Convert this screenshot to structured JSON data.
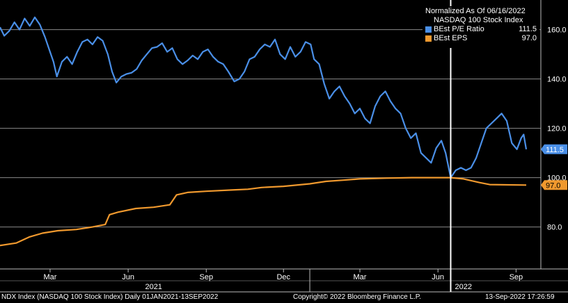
{
  "legend": {
    "title": "Normalized As Of 06/16/2022",
    "subtitle": "NASDAQ 100 Stock Index",
    "items": [
      {
        "label": "BEst P/E Ratio",
        "value": "111.5",
        "color": "#4a8fe7"
      },
      {
        "label": "BEst EPS",
        "value": "97.0",
        "color": "#f0992e"
      }
    ]
  },
  "footer": {
    "left": "NDX Index (NASDAQ 100 Stock Index)  Daily 01JAN2021-13SEP2022",
    "center": "Copyright© 2022 Bloomberg Finance L.P.",
    "right": "13-Sep-2022 17:26:59"
  },
  "chart_data": {
    "type": "line",
    "x_start": "2021-01-01",
    "x_end": "2022-09-13",
    "marker_date": "2022-06-16",
    "ylim": [
      63,
      172
    ],
    "y_ticks": [
      80,
      100,
      120,
      140,
      160
    ],
    "y_tick_labels": [
      "80.0",
      "100.0",
      "120.0",
      "140.0",
      "160.0"
    ],
    "x_ticks": [
      {
        "date": "2021-03-01",
        "label": "Mar"
      },
      {
        "date": "2021-06-01",
        "label": "Jun"
      },
      {
        "date": "2021-09-01",
        "label": "Sep"
      },
      {
        "date": "2021-12-01",
        "label": "Dec"
      },
      {
        "date": "2022-03-01",
        "label": "Mar"
      },
      {
        "date": "2022-06-01",
        "label": "Jun"
      },
      {
        "date": "2022-09-01",
        "label": "Sep"
      }
    ],
    "year_labels": [
      {
        "date": "2021-07-01",
        "label": "2021"
      },
      {
        "date": "2022-07-01",
        "label": "2022"
      }
    ],
    "year_divider": "2022-01-01",
    "grid": true,
    "series": [
      {
        "name": "BEst P/E Ratio",
        "color": "#4a8fe7",
        "last_label": "111.5",
        "points": [
          [
            "2021-01-01",
            161.0
          ],
          [
            "2021-01-06",
            157.5
          ],
          [
            "2021-01-12",
            159.5
          ],
          [
            "2021-01-18",
            163.0
          ],
          [
            "2021-01-24",
            160.0
          ],
          [
            "2021-01-30",
            164.5
          ],
          [
            "2021-02-05",
            161.5
          ],
          [
            "2021-02-11",
            165.0
          ],
          [
            "2021-02-17",
            162.0
          ],
          [
            "2021-02-23",
            157.0
          ],
          [
            "2021-03-01",
            151.0
          ],
          [
            "2021-03-05",
            147.0
          ],
          [
            "2021-03-09",
            141.0
          ],
          [
            "2021-03-15",
            147.0
          ],
          [
            "2021-03-21",
            149.0
          ],
          [
            "2021-03-27",
            146.0
          ],
          [
            "2021-04-02",
            151.0
          ],
          [
            "2021-04-08",
            155.0
          ],
          [
            "2021-04-14",
            156.0
          ],
          [
            "2021-04-20",
            154.0
          ],
          [
            "2021-04-26",
            157.0
          ],
          [
            "2021-05-02",
            155.5
          ],
          [
            "2021-05-08",
            150.0
          ],
          [
            "2021-05-13",
            143.0
          ],
          [
            "2021-05-18",
            138.5
          ],
          [
            "2021-05-24",
            141.0
          ],
          [
            "2021-05-30",
            142.0
          ],
          [
            "2021-06-05",
            142.5
          ],
          [
            "2021-06-11",
            144.0
          ],
          [
            "2021-06-17",
            147.5
          ],
          [
            "2021-06-23",
            150.0
          ],
          [
            "2021-06-29",
            152.5
          ],
          [
            "2021-07-05",
            153.0
          ],
          [
            "2021-07-11",
            154.5
          ],
          [
            "2021-07-17",
            151.0
          ],
          [
            "2021-07-23",
            152.5
          ],
          [
            "2021-07-29",
            148.0
          ],
          [
            "2021-08-04",
            146.0
          ],
          [
            "2021-08-10",
            147.5
          ],
          [
            "2021-08-16",
            149.5
          ],
          [
            "2021-08-22",
            148.0
          ],
          [
            "2021-08-28",
            151.0
          ],
          [
            "2021-09-03",
            152.0
          ],
          [
            "2021-09-09",
            149.0
          ],
          [
            "2021-09-15",
            147.0
          ],
          [
            "2021-09-21",
            146.0
          ],
          [
            "2021-09-27",
            143.0
          ],
          [
            "2021-10-04",
            139.0
          ],
          [
            "2021-10-10",
            140.0
          ],
          [
            "2021-10-16",
            143.0
          ],
          [
            "2021-10-22",
            148.0
          ],
          [
            "2021-10-28",
            149.0
          ],
          [
            "2021-11-03",
            152.0
          ],
          [
            "2021-11-09",
            154.0
          ],
          [
            "2021-11-15",
            153.0
          ],
          [
            "2021-11-21",
            156.0
          ],
          [
            "2021-11-27",
            150.0
          ],
          [
            "2021-12-03",
            148.0
          ],
          [
            "2021-12-09",
            153.0
          ],
          [
            "2021-12-15",
            149.0
          ],
          [
            "2021-12-21",
            151.0
          ],
          [
            "2021-12-27",
            155.0
          ],
          [
            "2022-01-02",
            154.0
          ],
          [
            "2022-01-06",
            148.0
          ],
          [
            "2022-01-12",
            146.0
          ],
          [
            "2022-01-18",
            138.0
          ],
          [
            "2022-01-24",
            132.0
          ],
          [
            "2022-01-30",
            135.0
          ],
          [
            "2022-02-05",
            137.0
          ],
          [
            "2022-02-11",
            133.0
          ],
          [
            "2022-02-17",
            130.0
          ],
          [
            "2022-02-23",
            126.0
          ],
          [
            "2022-03-01",
            128.0
          ],
          [
            "2022-03-07",
            124.0
          ],
          [
            "2022-03-13",
            122.0
          ],
          [
            "2022-03-19",
            129.0
          ],
          [
            "2022-03-25",
            133.0
          ],
          [
            "2022-03-31",
            135.0
          ],
          [
            "2022-04-06",
            131.0
          ],
          [
            "2022-04-12",
            128.0
          ],
          [
            "2022-04-18",
            126.0
          ],
          [
            "2022-04-24",
            120.0
          ],
          [
            "2022-04-30",
            116.0
          ],
          [
            "2022-05-06",
            118.0
          ],
          [
            "2022-05-12",
            110.0
          ],
          [
            "2022-05-18",
            108.0
          ],
          [
            "2022-05-24",
            106.0
          ],
          [
            "2022-05-30",
            112.0
          ],
          [
            "2022-06-05",
            115.0
          ],
          [
            "2022-06-10",
            110.0
          ],
          [
            "2022-06-16",
            100.0
          ],
          [
            "2022-06-22",
            103.0
          ],
          [
            "2022-06-28",
            104.0
          ],
          [
            "2022-07-04",
            103.0
          ],
          [
            "2022-07-10",
            104.0
          ],
          [
            "2022-07-16",
            108.0
          ],
          [
            "2022-07-22",
            114.0
          ],
          [
            "2022-07-28",
            120.0
          ],
          [
            "2022-08-03",
            122.0
          ],
          [
            "2022-08-09",
            124.0
          ],
          [
            "2022-08-15",
            126.0
          ],
          [
            "2022-08-21",
            123.0
          ],
          [
            "2022-08-27",
            114.0
          ],
          [
            "2022-09-02",
            111.5
          ],
          [
            "2022-09-07",
            116.0
          ],
          [
            "2022-09-10",
            117.5
          ],
          [
            "2022-09-13",
            111.5
          ]
        ]
      },
      {
        "name": "BEst EPS",
        "color": "#f0992e",
        "last_label": "97.0",
        "points": [
          [
            "2021-01-01",
            72.5
          ],
          [
            "2021-01-20",
            73.5
          ],
          [
            "2021-02-05",
            76.0
          ],
          [
            "2021-02-20",
            77.5
          ],
          [
            "2021-03-10",
            78.5
          ],
          [
            "2021-04-01",
            79.0
          ],
          [
            "2021-04-20",
            80.0
          ],
          [
            "2021-05-05",
            81.0
          ],
          [
            "2021-05-10",
            85.0
          ],
          [
            "2021-05-20",
            86.0
          ],
          [
            "2021-06-10",
            87.5
          ],
          [
            "2021-07-01",
            88.0
          ],
          [
            "2021-07-20",
            89.0
          ],
          [
            "2021-07-28",
            93.0
          ],
          [
            "2021-08-10",
            94.0
          ],
          [
            "2021-09-01",
            94.5
          ],
          [
            "2021-10-01",
            95.0
          ],
          [
            "2021-10-20",
            95.3
          ],
          [
            "2021-11-05",
            96.0
          ],
          [
            "2021-12-01",
            96.5
          ],
          [
            "2022-01-01",
            97.5
          ],
          [
            "2022-01-20",
            98.5
          ],
          [
            "2022-02-10",
            99.0
          ],
          [
            "2022-03-01",
            99.5
          ],
          [
            "2022-04-01",
            99.8
          ],
          [
            "2022-05-01",
            100.0
          ],
          [
            "2022-06-16",
            100.0
          ],
          [
            "2022-07-01",
            99.5
          ],
          [
            "2022-07-20",
            98.0
          ],
          [
            "2022-08-01",
            97.2
          ],
          [
            "2022-09-13",
            97.0
          ]
        ]
      }
    ]
  }
}
